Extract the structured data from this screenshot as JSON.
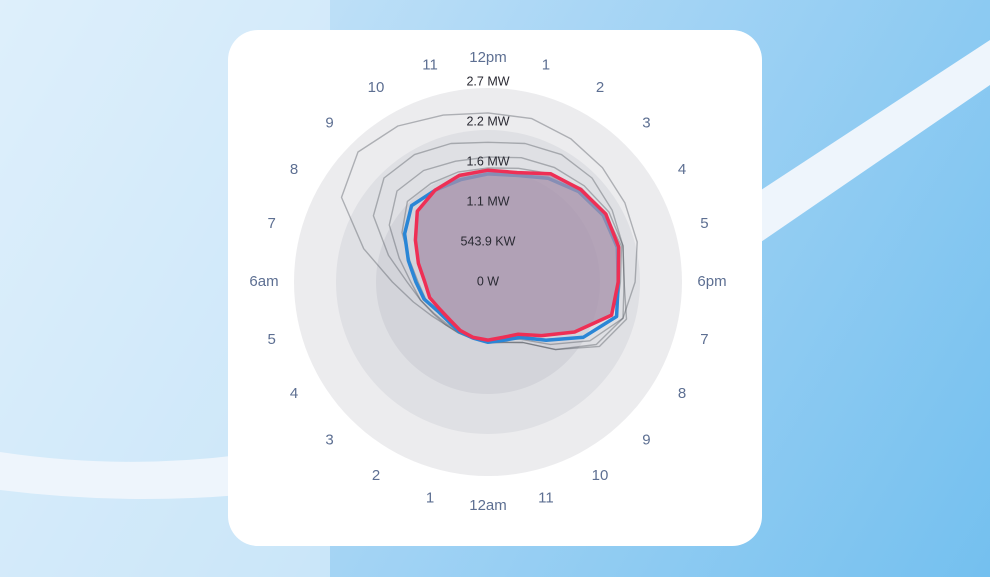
{
  "chart_data": {
    "type": "radial-line",
    "categories": [
      "12pm",
      "1",
      "2",
      "3",
      "4",
      "5",
      "6pm",
      "7",
      "8",
      "9",
      "10",
      "11",
      "12am",
      "1",
      "2",
      "3",
      "4",
      "5",
      "6am",
      "7",
      "8",
      "9",
      "10",
      "11"
    ],
    "rlim": [
      0,
      2.7195
    ],
    "rticks": [
      {
        "value": 0,
        "label": "0 W"
      },
      {
        "value": 0.5439,
        "label": "543.9 KW"
      },
      {
        "value": 1.0878,
        "label": "1.1 MW"
      },
      {
        "value": 1.6317,
        "label": "1.6 MW"
      },
      {
        "value": 2.1756,
        "label": "2.2 MW"
      },
      {
        "value": 2.7195,
        "label": "2.7 MW"
      }
    ],
    "area_color": "#a690aa",
    "series": [
      {
        "color": "#3a3f47",
        "values": [
          2.3,
          2.3,
          2.25,
          2.2,
          2.15,
          2.1,
          2.0,
          1.9,
          1.7,
          1.3,
          0.95,
          0.85,
          0.82,
          0.8,
          0.8,
          0.82,
          0.9,
          1.05,
          1.3,
          1.75,
          2.3,
          2.5,
          2.45,
          2.35
        ]
      },
      {
        "color": "#3a3f47",
        "values": [
          1.9,
          1.95,
          2.0,
          2.0,
          1.95,
          1.9,
          1.85,
          1.9,
          1.6,
          1.2,
          0.9,
          0.8,
          0.8,
          0.78,
          0.78,
          0.8,
          0.85,
          0.95,
          1.1,
          1.4,
          1.8,
          2.0,
          2.0,
          1.95
        ]
      },
      {
        "color": "#3a3f47",
        "values": [
          1.7,
          1.75,
          1.8,
          1.85,
          1.9,
          1.9,
          1.85,
          1.95,
          1.75,
          1.3,
          0.95,
          0.85,
          0.83,
          0.8,
          0.8,
          0.82,
          0.86,
          0.95,
          1.05,
          1.25,
          1.55,
          1.75,
          1.75,
          1.7
        ]
      },
      {
        "color": "#3a3f47",
        "values": [
          1.55,
          1.6,
          1.7,
          1.8,
          1.85,
          1.88,
          1.8,
          1.8,
          1.5,
          1.1,
          0.85,
          0.8,
          0.8,
          0.78,
          0.77,
          0.76,
          0.8,
          0.88,
          0.95,
          1.1,
          1.35,
          1.55,
          1.55,
          1.55
        ]
      },
      {
        "color": "#2a86d6",
        "values": [
          1.47,
          1.5,
          1.63,
          1.74,
          1.81,
          1.82,
          1.77,
          1.81,
          1.5,
          1.12,
          0.87,
          0.82,
          0.82,
          0.79,
          0.78,
          0.76,
          0.79,
          0.9,
          0.98,
          1.12,
          1.31,
          1.47,
          1.44,
          1.44
        ]
      },
      {
        "color": "#ee2f55",
        "values": [
          1.52,
          1.54,
          1.7,
          1.78,
          1.85,
          1.84,
          1.77,
          1.74,
          1.36,
          1.03,
          0.82,
          0.78,
          0.79,
          0.78,
          0.76,
          0.73,
          0.75,
          0.82,
          0.86,
          0.98,
          1.14,
          1.36,
          1.44,
          1.5
        ]
      }
    ]
  }
}
